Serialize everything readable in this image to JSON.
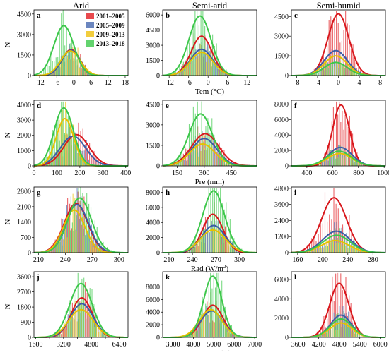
{
  "columns": [
    "Arid",
    "Semi-arid",
    "Semi-humid"
  ],
  "legend": [
    {
      "label": "2001–2005",
      "color": "#e8494d"
    },
    {
      "label": "2005–2009",
      "color": "#6b86bf"
    },
    {
      "label": "2009–2013",
      "color": "#f2cd3d"
    },
    {
      "label": "2013–2018",
      "color": "#63d36e"
    }
  ],
  "colors": {
    "r": "#e8494d",
    "b": "#6b86bf",
    "y": "#f2cd3d",
    "g": "#63d36e",
    "rc": "#d8171c",
    "bc": "#3a5ca6",
    "yc": "#e6c200",
    "gc": "#3cc74a"
  },
  "ylabel": "N",
  "rows": [
    {
      "xlabel": "Tem (°C)",
      "xlabel_sup": ""
    },
    {
      "xlabel": "Pre (mm)",
      "xlabel_sup": ""
    },
    {
      "xlabel": "Rad (W/m",
      "xlabel_sup": "2",
      "xlabel_tail": ")"
    },
    {
      "xlabel": "Elevation (m)",
      "xlabel_sup": ""
    }
  ],
  "chart_data": [
    {
      "type": "bar",
      "panel": "a",
      "row": 0,
      "col": 0,
      "xlim": [
        -14,
        19
      ],
      "ylim": [
        0,
        4800
      ],
      "xticks": [
        -12,
        -6,
        0,
        6,
        12,
        18
      ],
      "yticks": [
        0,
        1500,
        3000,
        4500
      ],
      "ytick_labels": [
        "0",
        "1500",
        "3000",
        "4500"
      ],
      "series": [
        {
          "name": "2001–2005",
          "mu": -1,
          "sd": 3.2,
          "peak": 1900
        },
        {
          "name": "2005–2009",
          "mu": -1,
          "sd": 3.2,
          "peak": 1850
        },
        {
          "name": "2009–2013",
          "mu": -1.2,
          "sd": 3.4,
          "peak": 1800
        },
        {
          "name": "2013–2018",
          "mu": -3.5,
          "sd": 3.5,
          "peak": 3650
        }
      ]
    },
    {
      "type": "bar",
      "panel": "b",
      "row": 0,
      "col": 1,
      "xlim": [
        -14,
        15
      ],
      "ylim": [
        0,
        6500
      ],
      "xticks": [
        -12,
        -6,
        0,
        6,
        12
      ],
      "yticks": [
        0,
        1500,
        3000,
        4500,
        6000
      ],
      "ytick_labels": [
        "0",
        "1500",
        "3000",
        "4500",
        "6000"
      ],
      "series": [
        {
          "name": "2001–2005",
          "mu": -2,
          "sd": 3.2,
          "peak": 3900
        },
        {
          "name": "2005–2009",
          "mu": -2,
          "sd": 3.4,
          "peak": 2600
        },
        {
          "name": "2009–2013",
          "mu": -2,
          "sd": 3.5,
          "peak": 2300
        },
        {
          "name": "2013–2018",
          "mu": -2.5,
          "sd": 3.4,
          "peak": 5900
        }
      ]
    },
    {
      "type": "bar",
      "panel": "c",
      "row": 0,
      "col": 2,
      "xlim": [
        -9,
        9
      ],
      "ylim": [
        0,
        5000
      ],
      "xticks": [
        -8,
        -4,
        0,
        4,
        8
      ],
      "yticks": [
        0,
        1500,
        3000,
        4500
      ],
      "ytick_labels": [
        "0",
        "1500",
        "3000",
        "4500"
      ],
      "series": [
        {
          "name": "2001–2005",
          "mu": 0,
          "sd": 2.0,
          "peak": 4700
        },
        {
          "name": "2005–2009",
          "mu": -0.5,
          "sd": 2.2,
          "peak": 1900
        },
        {
          "name": "2009–2013",
          "mu": -0.5,
          "sd": 2.2,
          "peak": 1500
        },
        {
          "name": "2013–2018",
          "mu": -0.5,
          "sd": 2.2,
          "peak": 1000
        }
      ]
    },
    {
      "type": "bar",
      "panel": "d",
      "row": 1,
      "col": 0,
      "xlim": [
        0,
        410
      ],
      "ylim": [
        0,
        4300
      ],
      "xticks": [
        0,
        100,
        200,
        300,
        400
      ],
      "yticks": [
        0,
        1000,
        2000,
        3000,
        4000
      ],
      "ytick_labels": [
        "0",
        "1000",
        "2000",
        "3000",
        "4000"
      ],
      "series": [
        {
          "name": "2001–2005",
          "mu": 185,
          "sd": 55,
          "peak": 2050
        },
        {
          "name": "2005–2009",
          "mu": 170,
          "sd": 55,
          "peak": 1950
        },
        {
          "name": "2009–2013",
          "mu": 135,
          "sd": 38,
          "peak": 3100
        },
        {
          "name": "2013–2018",
          "mu": 130,
          "sd": 42,
          "peak": 3800
        }
      ]
    },
    {
      "type": "bar",
      "panel": "e",
      "row": 1,
      "col": 1,
      "xlim": [
        70,
        590
      ],
      "ylim": [
        0,
        4800
      ],
      "xticks": [
        150,
        300,
        450
      ],
      "yticks": [
        0,
        1500,
        3000,
        4500
      ],
      "ytick_labels": [
        "0",
        "1500",
        "3000",
        "4500"
      ],
      "series": [
        {
          "name": "2001–2005",
          "mu": 305,
          "sd": 75,
          "peak": 2350
        },
        {
          "name": "2005–2009",
          "mu": 300,
          "sd": 70,
          "peak": 2000
        },
        {
          "name": "2009–2013",
          "mu": 290,
          "sd": 70,
          "peak": 1600
        },
        {
          "name": "2013–2018",
          "mu": 280,
          "sd": 65,
          "peak": 3800
        }
      ]
    },
    {
      "type": "bar",
      "panel": "f",
      "row": 1,
      "col": 2,
      "xlim": [
        280,
        1010
      ],
      "ylim": [
        0,
        8500
      ],
      "xticks": [
        400,
        600,
        800,
        1000
      ],
      "yticks": [
        0,
        2000,
        4000,
        6000,
        8000
      ],
      "ytick_labels": [
        "0",
        "2000",
        "4000",
        "6000",
        "8000"
      ],
      "series": [
        {
          "name": "2001–2005",
          "mu": 665,
          "sd": 65,
          "peak": 7900
        },
        {
          "name": "2005–2009",
          "mu": 660,
          "sd": 90,
          "peak": 2400
        },
        {
          "name": "2009–2013",
          "mu": 655,
          "sd": 95,
          "peak": 1600
        },
        {
          "name": "2013–2018",
          "mu": 650,
          "sd": 95,
          "peak": 1900
        }
      ]
    },
    {
      "type": "bar",
      "panel": "g",
      "row": 2,
      "col": 0,
      "xlim": [
        205,
        310
      ],
      "ylim": [
        0,
        3000
      ],
      "xticks": [
        210,
        240,
        270,
        300
      ],
      "yticks": [
        0,
        700,
        1400,
        2100,
        2800
      ],
      "ytick_labels": [
        "0",
        "700",
        "1400",
        "2100",
        "2800"
      ],
      "series": [
        {
          "name": "2001–2005",
          "mu": 252,
          "sd": 13,
          "peak": 2250
        },
        {
          "name": "2005–2009",
          "mu": 253,
          "sd": 13,
          "peak": 2200
        },
        {
          "name": "2009–2013",
          "mu": 250,
          "sd": 12,
          "peak": 1950
        },
        {
          "name": "2013–2018",
          "mu": 256,
          "sd": 13,
          "peak": 2500
        }
      ]
    },
    {
      "type": "bar",
      "panel": "h",
      "row": 2,
      "col": 1,
      "xlim": [
        202,
        322
      ],
      "ylim": [
        0,
        8700
      ],
      "xticks": [
        210,
        240,
        270,
        300
      ],
      "yticks": [
        0,
        2000,
        4000,
        6000,
        8000
      ],
      "ytick_labels": [
        "0",
        "2000",
        "4000",
        "6000",
        "8000"
      ],
      "series": [
        {
          "name": "2001–2005",
          "mu": 266,
          "sd": 13,
          "peak": 5100
        },
        {
          "name": "2005–2009",
          "mu": 267,
          "sd": 15,
          "peak": 3600
        },
        {
          "name": "2009–2013",
          "mu": 266,
          "sd": 16,
          "peak": 3000
        },
        {
          "name": "2013–2018",
          "mu": 267,
          "sd": 14,
          "peak": 8200
        }
      ]
    },
    {
      "type": "bar",
      "panel": "i",
      "row": 2,
      "col": 2,
      "xlim": [
        150,
        300
      ],
      "ylim": [
        0,
        4900
      ],
      "xticks": [
        160,
        200,
        240,
        280
      ],
      "yticks": [
        0,
        1200,
        2400,
        3600,
        4800
      ],
      "ytick_labels": [
        "0",
        "1200",
        "2400",
        "3600",
        "4800"
      ],
      "series": [
        {
          "name": "2001–2005",
          "mu": 218,
          "sd": 20,
          "peak": 4100
        },
        {
          "name": "2005–2009",
          "mu": 222,
          "sd": 22,
          "peak": 1600
        },
        {
          "name": "2009–2013",
          "mu": 220,
          "sd": 22,
          "peak": 900
        },
        {
          "name": "2013–2018",
          "mu": 222,
          "sd": 22,
          "peak": 1300
        }
      ]
    },
    {
      "type": "bar",
      "panel": "j",
      "row": 3,
      "col": 0,
      "xlim": [
        1500,
        6900
      ],
      "ylim": [
        0,
        3900
      ],
      "xticks": [
        1600,
        3200,
        4800,
        6400
      ],
      "extra_xticks": [
        2400,
        4000,
        5600
      ],
      "yticks": [
        0,
        900,
        1800,
        2700,
        3600
      ],
      "ytick_labels": [
        "0",
        "900",
        "1800",
        "2700",
        "3600"
      ],
      "series": [
        {
          "name": "2001–2005",
          "mu": 4250,
          "sd": 600,
          "peak": 2350
        },
        {
          "name": "2005–2009",
          "mu": 4250,
          "sd": 650,
          "peak": 2000
        },
        {
          "name": "2009–2013",
          "mu": 4200,
          "sd": 700,
          "peak": 1650
        },
        {
          "name": "2013–2018",
          "mu": 4200,
          "sd": 650,
          "peak": 3200
        }
      ]
    },
    {
      "type": "bar",
      "panel": "k",
      "row": 3,
      "col": 1,
      "xlim": [
        2500,
        7100
      ],
      "ylim": [
        0,
        10400
      ],
      "xticks": [
        3000,
        4000,
        5000,
        6000,
        7000
      ],
      "yticks": [
        0,
        2000,
        4000,
        6000,
        8000
      ],
      "ytick_labels": [
        "0",
        "2000",
        "4000",
        "6000",
        "8000"
      ],
      "series": [
        {
          "name": "2001–2005",
          "mu": 4950,
          "sd": 500,
          "peak": 5100
        },
        {
          "name": "2005–2009",
          "mu": 4900,
          "sd": 550,
          "peak": 4200
        },
        {
          "name": "2009–2013",
          "mu": 4850,
          "sd": 550,
          "peak": 4400
        },
        {
          "name": "2013–2018",
          "mu": 4950,
          "sd": 450,
          "peak": 9700
        }
      ]
    },
    {
      "type": "bar",
      "panel": "l",
      "row": 3,
      "col": 2,
      "xlim": [
        3400,
        6150
      ],
      "ylim": [
        0,
        6800
      ],
      "xticks": [
        3600,
        4200,
        4800,
        5400,
        6000
      ],
      "yticks": [
        0,
        2000,
        4000,
        6000
      ],
      "ytick_labels": [
        "0",
        "2000",
        "4000",
        "6000"
      ],
      "series": [
        {
          "name": "2001–2005",
          "mu": 4800,
          "sd": 280,
          "peak": 5600
        },
        {
          "name": "2005–2009",
          "mu": 4850,
          "sd": 300,
          "peak": 2300
        },
        {
          "name": "2009–2013",
          "mu": 4850,
          "sd": 320,
          "peak": 1500
        },
        {
          "name": "2013–2018",
          "mu": 4850,
          "sd": 320,
          "peak": 1900
        }
      ]
    }
  ]
}
